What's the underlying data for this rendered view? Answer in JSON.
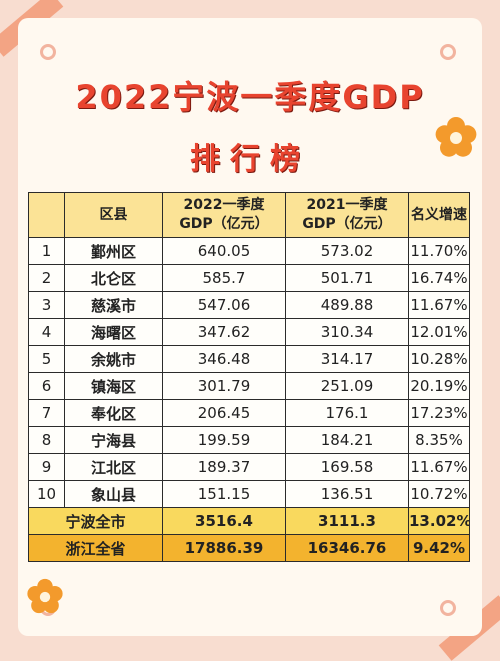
{
  "title_line1": "2022宁波一季度GDP",
  "title_line2": "排行榜",
  "colors": {
    "title": "#e8442f",
    "header_bg": "#fbe396",
    "city_total_bg": "#f9d95e",
    "province_total_bg": "#f3b32e",
    "flower": "#f39a2c",
    "background": "#f8ddd0"
  },
  "table": {
    "headers": {
      "rank": "",
      "district": "区县",
      "gdp_2022_line1": "2022一季度",
      "gdp_2022_line2": "GDP（亿元）",
      "gdp_2021_line1": "2021一季度",
      "gdp_2021_line2": "GDP（亿元）",
      "growth": "名义增速"
    },
    "rows": [
      {
        "rank": "1",
        "name": "鄞州区",
        "gdp2022": "640.05",
        "gdp2021": "573.02",
        "growth": "11.70%"
      },
      {
        "rank": "2",
        "name": "北仑区",
        "gdp2022": "585.7",
        "gdp2021": "501.71",
        "growth": "16.74%"
      },
      {
        "rank": "3",
        "name": "慈溪市",
        "gdp2022": "547.06",
        "gdp2021": "489.88",
        "growth": "11.67%"
      },
      {
        "rank": "4",
        "name": "海曙区",
        "gdp2022": "347.62",
        "gdp2021": "310.34",
        "growth": "12.01%"
      },
      {
        "rank": "5",
        "name": "余姚市",
        "gdp2022": "346.48",
        "gdp2021": "314.17",
        "growth": "10.28%"
      },
      {
        "rank": "6",
        "name": "镇海区",
        "gdp2022": "301.79",
        "gdp2021": "251.09",
        "growth": "20.19%"
      },
      {
        "rank": "7",
        "name": "奉化区",
        "gdp2022": "206.45",
        "gdp2021": "176.1",
        "growth": "17.23%"
      },
      {
        "rank": "8",
        "name": "宁海县",
        "gdp2022": "199.59",
        "gdp2021": "184.21",
        "growth": "8.35%"
      },
      {
        "rank": "9",
        "name": "江北区",
        "gdp2022": "189.37",
        "gdp2021": "169.58",
        "growth": "11.67%"
      },
      {
        "rank": "10",
        "name": "象山县",
        "gdp2022": "151.15",
        "gdp2021": "136.51",
        "growth": "10.72%"
      }
    ],
    "city_total": {
      "name": "宁波全市",
      "gdp2022": "3516.4",
      "gdp2021": "3111.3",
      "growth": "13.02%"
    },
    "province_total": {
      "name": "浙江全省",
      "gdp2022": "17886.39",
      "gdp2021": "16346.76",
      "growth": "9.42%"
    }
  }
}
